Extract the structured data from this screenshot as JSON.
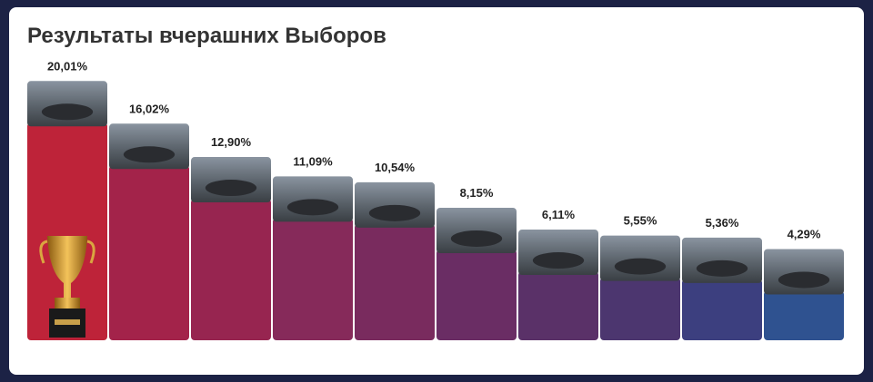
{
  "chart_data": {
    "type": "bar",
    "title": "Результаты вчерашних Выборов",
    "categories": [
      null,
      null,
      null,
      null,
      null,
      null,
      null,
      null,
      null,
      null
    ],
    "values": [
      20.01,
      16.02,
      12.9,
      11.09,
      10.54,
      8.15,
      6.11,
      5.55,
      5.36,
      4.29
    ],
    "value_labels": [
      "20,01%",
      "16,02%",
      "12,90%",
      "11,09%",
      "10,54%",
      "8,15%",
      "6,11%",
      "5,55%",
      "5,36%",
      "4,29%"
    ],
    "colors": [
      "#be2339",
      "#a3234a",
      "#972550",
      "#862a5a",
      "#792b5e",
      "#6a2d64",
      "#5a3168",
      "#4c366f",
      "#3c3f7f",
      "#2f5290"
    ]
  }
}
